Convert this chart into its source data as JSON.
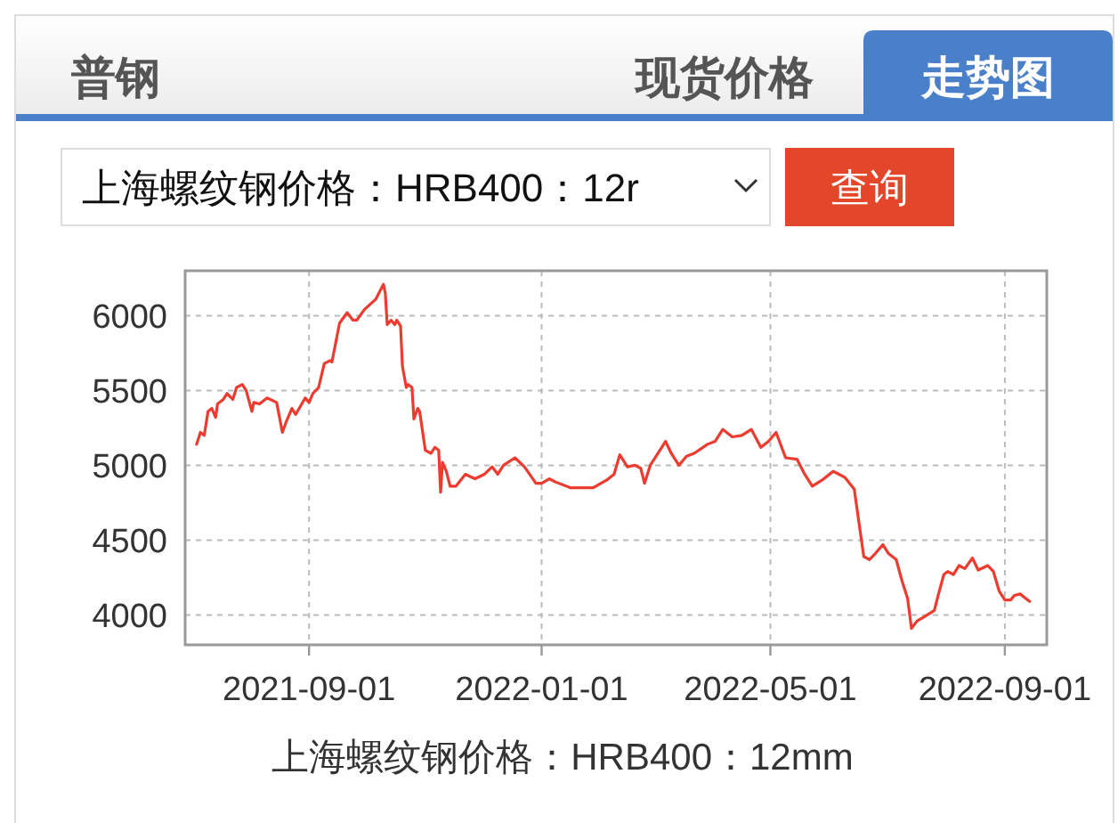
{
  "chart_data": {
    "type": "line",
    "title": "普钢",
    "xlabel": "上海螺纹钢价格：HRB400：12mm",
    "annotations": [
      "现货价格",
      "走势图",
      "上海螺纹钢价格：HRB400：12r",
      "查询"
    ],
    "x": [
      "2021-07-04",
      "2021-07-06",
      "2021-07-08",
      "2021-07-10",
      "2021-07-12",
      "2021-07-14",
      "2021-07-15",
      "2021-07-18",
      "2021-07-20",
      "2021-07-23",
      "2021-07-25",
      "2021-07-28",
      "2021-07-30",
      "2021-08-02",
      "2021-08-03",
      "2021-08-06",
      "2021-08-10",
      "2021-08-15",
      "2021-08-18",
      "2021-08-20",
      "2021-08-23",
      "2021-08-25",
      "2021-08-30",
      "2021-09-01",
      "2021-09-03",
      "2021-09-06",
      "2021-09-09",
      "2021-09-12",
      "2021-09-13",
      "2021-09-17",
      "2021-09-21",
      "2021-09-24",
      "2021-09-26",
      "2021-09-30",
      "2021-10-06",
      "2021-10-10",
      "2021-10-11",
      "2021-10-12",
      "2021-10-14",
      "2021-10-16",
      "2021-10-17",
      "2021-10-19",
      "2021-10-20",
      "2021-10-22",
      "2021-10-23",
      "2021-10-25",
      "2021-10-26",
      "2021-10-28",
      "2021-10-29",
      "2021-11-01",
      "2021-11-04",
      "2021-11-06",
      "2021-11-08",
      "2021-11-09",
      "2021-11-10",
      "2021-11-12",
      "2021-11-14",
      "2021-11-17",
      "2021-11-22",
      "2021-11-27",
      "2021-12-02",
      "2021-12-06",
      "2021-12-09",
      "2021-12-12",
      "2021-12-18",
      "2021-12-23",
      "2021-12-29",
      "2022-01-01",
      "2022-01-05",
      "2022-01-08",
      "2022-01-16",
      "2022-01-28",
      "2022-02-04",
      "2022-02-08",
      "2022-02-11",
      "2022-02-15",
      "2022-02-19",
      "2022-02-22",
      "2022-02-24",
      "2022-02-27",
      "2022-03-04",
      "2022-03-07",
      "2022-03-10",
      "2022-03-14",
      "2022-03-18",
      "2022-03-22",
      "2022-03-29",
      "2022-04-02",
      "2022-04-06",
      "2022-04-11",
      "2022-04-16",
      "2022-04-21",
      "2022-04-26",
      "2022-04-30",
      "2022-05-04",
      "2022-05-09",
      "2022-05-15",
      "2022-05-19",
      "2022-05-23",
      "2022-05-28",
      "2022-06-03",
      "2022-06-06",
      "2022-06-09",
      "2022-06-14",
      "2022-06-16",
      "2022-06-19",
      "2022-06-22",
      "2022-06-25",
      "2022-06-29",
      "2022-07-02",
      "2022-07-06",
      "2022-07-09",
      "2022-07-12",
      "2022-07-14",
      "2022-07-17",
      "2022-07-21",
      "2022-07-26",
      "2022-07-28",
      "2022-07-31",
      "2022-08-02",
      "2022-08-05",
      "2022-08-08",
      "2022-08-11",
      "2022-08-15",
      "2022-08-18",
      "2022-08-23",
      "2022-08-26",
      "2022-08-29",
      "2022-09-01",
      "2022-09-04",
      "2022-09-06",
      "2022-09-09",
      "2022-09-11",
      "2022-09-14"
    ],
    "series": [
      {
        "color": "#ee3b30",
        "values": [
          5140,
          5220,
          5200,
          5360,
          5380,
          5320,
          5410,
          5440,
          5480,
          5440,
          5520,
          5540,
          5500,
          5360,
          5420,
          5410,
          5450,
          5420,
          5220,
          5290,
          5380,
          5340,
          5450,
          5420,
          5480,
          5520,
          5680,
          5700,
          5690,
          5950,
          6020,
          5970,
          5970,
          6040,
          6110,
          6210,
          6150,
          5940,
          5970,
          5940,
          5970,
          5930,
          5660,
          5520,
          5540,
          5520,
          5310,
          5380,
          5360,
          5100,
          5080,
          5120,
          5100,
          4820,
          5020,
          4960,
          4860,
          4860,
          4940,
          4910,
          4940,
          4990,
          4940,
          5000,
          5050,
          4990,
          4880,
          4880,
          4910,
          4890,
          4850,
          4850,
          4900,
          4940,
          5070,
          4990,
          5000,
          4980,
          4880,
          5000,
          5100,
          5160,
          5080,
          5000,
          5060,
          5080,
          5140,
          5160,
          5240,
          5190,
          5200,
          5240,
          5120,
          5160,
          5220,
          5050,
          5040,
          4940,
          4860,
          4900,
          4960,
          4940,
          4920,
          4840,
          4660,
          4390,
          4370,
          4410,
          4470,
          4410,
          4370,
          4230,
          4110,
          3910,
          3960,
          3990,
          4030,
          4130,
          4270,
          4290,
          4270,
          4330,
          4310,
          4380,
          4300,
          4330,
          4290,
          4160,
          4100,
          4100,
          4130,
          4140,
          4120,
          4090
        ]
      }
    ],
    "xlim": [
      "2021-06-28",
      "2022-09-23"
    ],
    "ylim": [
      3800,
      6300
    ],
    "xticks": [
      "2021-09-01",
      "2022-01-01",
      "2022-05-01",
      "2022-09-01"
    ],
    "yticks": [
      4000,
      4500,
      5000,
      5500,
      6000
    ],
    "grid": true,
    "line_style": "solid"
  }
}
